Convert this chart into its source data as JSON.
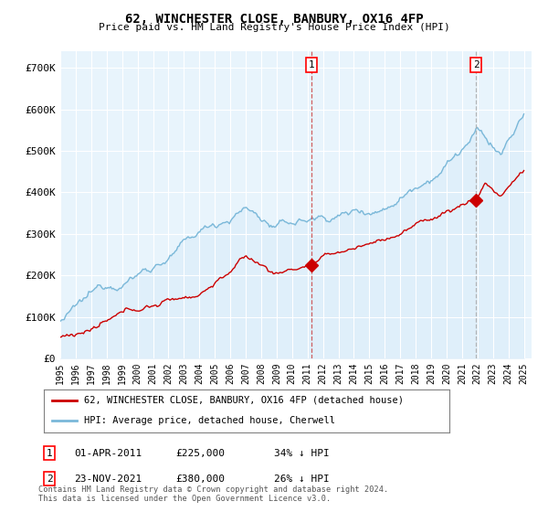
{
  "title": "62, WINCHESTER CLOSE, BANBURY, OX16 4FP",
  "subtitle": "Price paid vs. HM Land Registry's House Price Index (HPI)",
  "hpi_label": "HPI: Average price, detached house, Cherwell",
  "property_label": "62, WINCHESTER CLOSE, BANBURY, OX16 4FP (detached house)",
  "hpi_color": "#7ab8d9",
  "hpi_fill_color": "#d6eaf8",
  "property_color": "#cc0000",
  "annotation_1": {
    "label": "1",
    "date_str": "01-APR-2011",
    "price": "£225,000",
    "pct": "34% ↓ HPI",
    "x_year": 2011.25,
    "price_val": 225000
  },
  "annotation_2": {
    "label": "2",
    "date_str": "23-NOV-2021",
    "price": "£380,000",
    "pct": "26% ↓ HPI",
    "x_year": 2021.9,
    "price_val": 380000
  },
  "ylim": [
    0,
    740000
  ],
  "yticks": [
    0,
    100000,
    200000,
    300000,
    400000,
    500000,
    600000,
    700000
  ],
  "ytick_labels": [
    "£0",
    "£100K",
    "£200K",
    "£300K",
    "£400K",
    "£500K",
    "£600K",
    "£700K"
  ],
  "xmin": 1995,
  "xmax": 2025.5,
  "footer": "Contains HM Land Registry data © Crown copyright and database right 2024.\nThis data is licensed under the Open Government Licence v3.0.",
  "plot_bg_color": "#e8f4fc"
}
